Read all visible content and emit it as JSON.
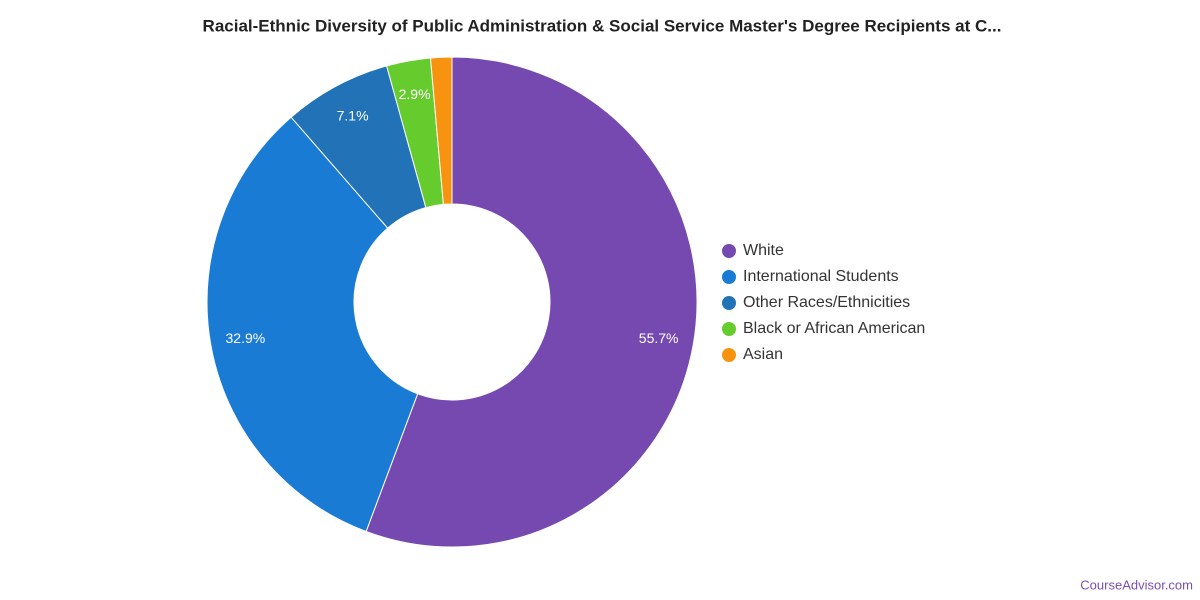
{
  "chart_data": {
    "type": "donut",
    "title": "Racial-Ethnic Diversity of Public Administration & Social Service Master's Degree Recipients at C...",
    "categories": [
      "White",
      "International Students",
      "Other Races/Ethnicities",
      "Black or African American",
      "Asian"
    ],
    "values": [
      55.7,
      32.9,
      7.1,
      2.9,
      1.4
    ],
    "value_labels": [
      "55.7%",
      "32.9%",
      "7.1%",
      "2.9%",
      null
    ],
    "colors": [
      "#7549b0",
      "#1a7bd5",
      "#2272b8",
      "#66cc2e",
      "#f7930f"
    ],
    "legend": "right",
    "source": "CourseAdvisor.com"
  }
}
